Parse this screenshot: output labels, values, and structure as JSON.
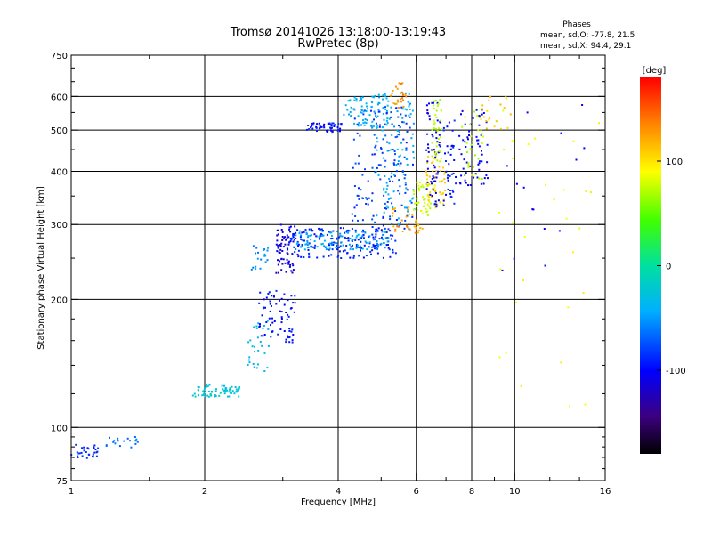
{
  "header": {
    "title_line1": "Tromsø 20141026 13:18:00-13:19:43",
    "title_line2": "RwPretec (8p)"
  },
  "info": {
    "heading": "Phases",
    "line_o": "mean, sd,O: -77.8, 21.5",
    "line_x": "mean, sd,X:  94.4, 29.1"
  },
  "colors": {
    "background": "#ffffff",
    "axes": "#000000",
    "grid": "#000000"
  },
  "chart_data": {
    "type": "scatter",
    "xlabel": "Frequency [MHz]",
    "ylabel": "Stationary phase Virtual Height [km]",
    "xscale": "log",
    "yscale": "log",
    "xlim": [
      1,
      16
    ],
    "ylim": [
      75,
      750
    ],
    "x_ticks": [
      1,
      2,
      4,
      6,
      8,
      10,
      16
    ],
    "x_tick_labels": [
      "1",
      "2",
      "4",
      "6",
      "8",
      "10",
      "16"
    ],
    "x_grid": [
      2,
      4,
      6,
      8,
      10
    ],
    "y_ticks": [
      75,
      100,
      200,
      300,
      400,
      500,
      600,
      750
    ],
    "y_tick_labels": [
      "75",
      "100",
      "200",
      "300",
      "400",
      "500",
      "600",
      "750"
    ],
    "y_grid": [
      100,
      200,
      300,
      400,
      500,
      600
    ],
    "grid": true,
    "colorbar": {
      "label": "[deg]",
      "range": [
        -180,
        180
      ],
      "ticks": [
        100,
        0,
        -100
      ],
      "tick_labels": [
        "100",
        "0",
        "-100"
      ],
      "placement": "right"
    },
    "series": [
      {
        "x_range": [
          1.0,
          1.15
        ],
        "y_range": [
          84,
          92
        ],
        "phase": -85,
        "count": 30
      },
      {
        "x_range": [
          1.2,
          1.45
        ],
        "y_range": [
          89,
          95
        ],
        "phase": -65,
        "count": 18
      },
      {
        "x_range": [
          1.88,
          2.4
        ],
        "y_range": [
          118,
          126
        ],
        "phase": -25,
        "count": 70
      },
      {
        "x_range": [
          2.5,
          2.8
        ],
        "y_range": [
          135,
          180
        ],
        "phase": -35,
        "count": 30
      },
      {
        "x_range": [
          2.65,
          3.2
        ],
        "y_range": [
          158,
          210
        ],
        "phase": -95,
        "count": 70
      },
      {
        "x_range": [
          2.55,
          2.8
        ],
        "y_range": [
          235,
          270
        ],
        "phase": -55,
        "count": 20
      },
      {
        "x_range": [
          2.9,
          3.2
        ],
        "y_range": [
          230,
          300
        ],
        "phase": -110,
        "count": 70
      },
      {
        "x_range": [
          3.1,
          5.4
        ],
        "y_range": [
          250,
          295
        ],
        "phase": -90,
        "count": 180
      },
      {
        "x_range": [
          3.2,
          5.2
        ],
        "y_range": [
          262,
          290
        ],
        "phase": -45,
        "count": 110
      },
      {
        "x_range": [
          4.3,
          5.9
        ],
        "y_range": [
          290,
          570
        ],
        "phase": -80,
        "count": 160
      },
      {
        "x_range": [
          4.8,
          5.95
        ],
        "y_range": [
          300,
          620
        ],
        "phase": -40,
        "count": 100
      },
      {
        "x_range": [
          3.4,
          4.1
        ],
        "y_range": [
          495,
          520
        ],
        "phase": -95,
        "count": 50
      },
      {
        "x_range": [
          4.1,
          5.2
        ],
        "y_range": [
          505,
          600
        ],
        "phase": -40,
        "count": 70
      },
      {
        "x_range": [
          5.25,
          5.7
        ],
        "y_range": [
          560,
          650
        ],
        "phase": 130,
        "count": 25
      },
      {
        "x_range": [
          5.3,
          6.2
        ],
        "y_range": [
          285,
          330
        ],
        "phase": 125,
        "count": 35
      },
      {
        "x_range": [
          5.9,
          6.7
        ],
        "y_range": [
          315,
          380
        ],
        "phase": 75,
        "count": 50
      },
      {
        "x_range": [
          6.3,
          7.0
        ],
        "y_range": [
          330,
          440
        ],
        "phase": 105,
        "count": 45
      },
      {
        "x_range": [
          6.3,
          6.8
        ],
        "y_range": [
          330,
          580
        ],
        "phase": -105,
        "count": 60
      },
      {
        "x_range": [
          6.5,
          6.85
        ],
        "y_range": [
          420,
          590
        ],
        "phase": 70,
        "count": 40
      },
      {
        "x_range": [
          6.9,
          7.4
        ],
        "y_range": [
          320,
          540
        ],
        "phase": -90,
        "count": 40
      },
      {
        "x_range": [
          7.5,
          8.7
        ],
        "y_range": [
          370,
          560
        ],
        "phase": -100,
        "count": 60
      },
      {
        "x_range": [
          7.6,
          8.5
        ],
        "y_range": [
          380,
          580
        ],
        "phase": 70,
        "count": 30
      },
      {
        "x_range": [
          8.3,
          9.8
        ],
        "y_range": [
          500,
          640
        ],
        "phase": 110,
        "count": 20
      },
      {
        "x_range": [
          9.2,
          15.5
        ],
        "y_range": [
          100,
          580
        ],
        "phase": 90,
        "count": 30
      },
      {
        "x_range": [
          9.2,
          14.5
        ],
        "y_range": [
          230,
          580
        ],
        "phase": -100,
        "count": 15
      }
    ]
  }
}
